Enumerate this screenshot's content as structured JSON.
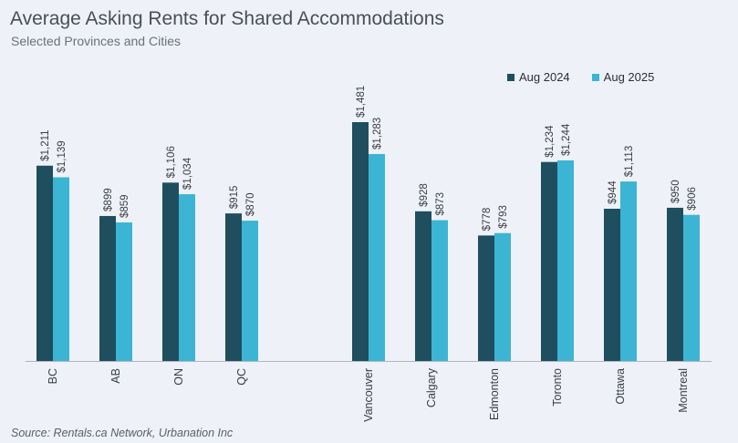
{
  "title": "Average Asking Rents for Shared Accommodations",
  "subtitle": "Selected Provinces and Cities",
  "source": "Source: Rentals.ca Network, Urbanation Inc",
  "colors": {
    "aug2024": "#1f4e5f",
    "aug2025": "#3cb4d4",
    "axis": "#b0b6be"
  },
  "chart_data": {
    "type": "bar",
    "title": "Average Asking Rents for Shared Accommodations",
    "subtitle": "Selected Provinces and Cities",
    "xlabel": "",
    "ylabel": "",
    "ylim": [
      0,
      1600
    ],
    "grid": false,
    "legend_position": "top-right",
    "categories": [
      "BC",
      "AB",
      "ON",
      "QC",
      "Vancouver",
      "Calgary",
      "Edmonton",
      "Toronto",
      "Ottawa",
      "Montreal"
    ],
    "series": [
      {
        "name": "Aug 2024",
        "values": [
          1211,
          899,
          1106,
          915,
          1481,
          928,
          778,
          1234,
          944,
          950
        ],
        "labels": [
          "$1,211",
          "$899",
          "$1,106",
          "$915",
          "$1,481",
          "$928",
          "$778",
          "$1,234",
          "$944",
          "$950"
        ]
      },
      {
        "name": "Aug 2025",
        "values": [
          1139,
          859,
          1034,
          870,
          1283,
          873,
          793,
          1244,
          1113,
          906
        ],
        "labels": [
          "$1,139",
          "$859",
          "$1,034",
          "$870",
          "$1,283",
          "$873",
          "$793",
          "$1,244",
          "$1,113",
          "$906"
        ]
      }
    ]
  }
}
